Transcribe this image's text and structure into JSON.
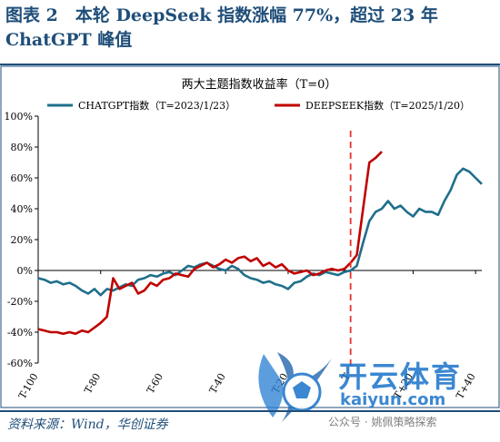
{
  "figure": {
    "title": "图表 2　本轮 DeepSeek 指数涨幅 77%，超过 23 年 ChatGPT 峰值",
    "source": "资料来源：Wind，华创证券"
  },
  "watermark": {
    "brand": "开云体育",
    "url": "kaiyun.com",
    "account": "公众号 · 姚佩策略探索"
  },
  "colors": {
    "chatgpt": "#1f6f8b",
    "deepseek": "#c00000",
    "marker": "#e8322d",
    "frame": "#1f4e79"
  },
  "chart_data": {
    "type": "line",
    "title": "两大主题指数收益率（T=0）",
    "xlabel": "",
    "ylabel": "",
    "xlim": [
      -100,
      42
    ],
    "ylim": [
      -60,
      100
    ],
    "yticks": [
      -60,
      -40,
      -20,
      0,
      20,
      40,
      60,
      80,
      100
    ],
    "ytick_labels": [
      "-60%",
      "-40%",
      "-20%",
      "0%",
      "20%",
      "40%",
      "60%",
      "80%",
      "100%"
    ],
    "xticks": [
      -100,
      -80,
      -60,
      -40,
      -20,
      0,
      20,
      40
    ],
    "xtick_labels": [
      "T-100",
      "T-80",
      "T-60",
      "T-40",
      "T-20",
      "T",
      "T+20",
      "T+40"
    ],
    "vline_x": 0,
    "legend_position": "top",
    "series": [
      {
        "name": "CHATGPT指数（T=2023/1/23）",
        "x": [
          -100,
          -98,
          -96,
          -94,
          -92,
          -90,
          -88,
          -86,
          -84,
          -82,
          -80,
          -78,
          -76,
          -74,
          -72,
          -70,
          -68,
          -66,
          -64,
          -62,
          -60,
          -58,
          -56,
          -54,
          -52,
          -50,
          -48,
          -46,
          -44,
          -42,
          -40,
          -38,
          -36,
          -34,
          -32,
          -30,
          -28,
          -26,
          -24,
          -22,
          -20,
          -18,
          -16,
          -14,
          -12,
          -10,
          -8,
          -6,
          -4,
          -2,
          0,
          2,
          4,
          6,
          8,
          10,
          12,
          14,
          16,
          18,
          20,
          22,
          24,
          26,
          28,
          30,
          32,
          34,
          36,
          38,
          40,
          42
        ],
        "values": [
          -5,
          -6,
          -8,
          -7,
          -9,
          -8,
          -10,
          -13,
          -15,
          -12,
          -16,
          -12,
          -13,
          -11,
          -9,
          -10,
          -6,
          -5,
          -3,
          -4,
          -2,
          -1,
          -3,
          0,
          3,
          2,
          4,
          5,
          3,
          1,
          0,
          3,
          1,
          -3,
          -5,
          -6,
          -8,
          -7,
          -9,
          -10,
          -12,
          -8,
          -7,
          -4,
          -2,
          -3,
          -1,
          -2,
          -3,
          -1,
          0,
          3,
          18,
          32,
          38,
          40,
          45,
          40,
          42,
          38,
          35,
          40,
          38,
          38,
          36,
          45,
          52,
          62,
          66,
          64,
          60,
          56
        ]
      },
      {
        "name": "DEEPSEEK指数（T=2025/1/20）",
        "x": [
          -100,
          -98,
          -96,
          -94,
          -92,
          -90,
          -88,
          -86,
          -84,
          -82,
          -80,
          -78,
          -76,
          -74,
          -72,
          -70,
          -68,
          -66,
          -64,
          -62,
          -60,
          -58,
          -56,
          -54,
          -52,
          -50,
          -48,
          -46,
          -44,
          -42,
          -40,
          -38,
          -36,
          -34,
          -32,
          -30,
          -28,
          -26,
          -24,
          -22,
          -20,
          -18,
          -16,
          -14,
          -12,
          -10,
          -8,
          -6,
          -4,
          -2,
          0,
          2,
          4,
          6,
          8,
          10
        ],
        "values": [
          -38,
          -39,
          -40,
          -40,
          -41,
          -40,
          -41,
          -39,
          -40,
          -37,
          -34,
          -30,
          -5,
          -12,
          -10,
          -8,
          -15,
          -13,
          -8,
          -10,
          -6,
          -5,
          -2,
          -3,
          -4,
          1,
          3,
          5,
          2,
          4,
          7,
          5,
          8,
          9,
          6,
          8,
          3,
          5,
          2,
          4,
          0,
          -2,
          -1,
          0,
          -3,
          -2,
          0,
          1,
          0,
          1,
          5,
          10,
          40,
          70,
          73,
          77
        ]
      }
    ]
  }
}
